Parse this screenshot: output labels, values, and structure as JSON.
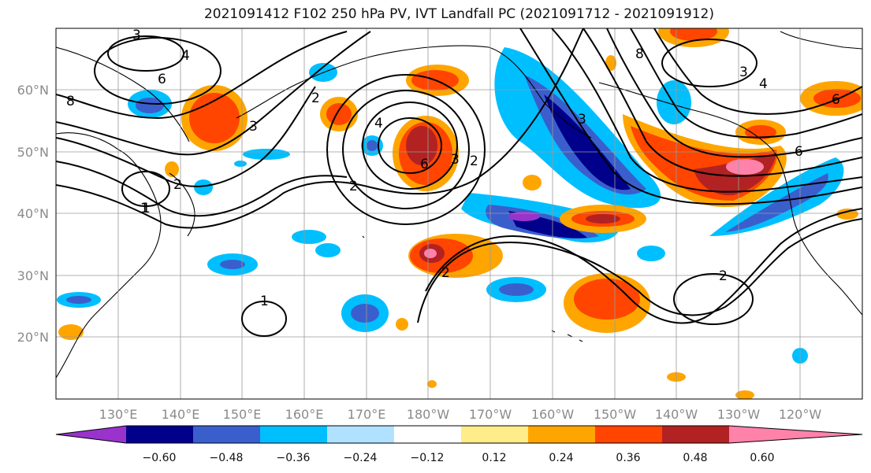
{
  "title": "2021091412 F102 250 hPa PV, IVT Landfall PC (2021091712 - 2021091912)",
  "lat_labels": [
    "20°N",
    "30°N",
    "40°N",
    "50°N",
    "60°N"
  ],
  "lon_labels": [
    "130°E",
    "140°E",
    "150°E",
    "160°E",
    "170°E",
    "180°W",
    "170°W",
    "160°W",
    "150°W",
    "140°W",
    "130°W",
    "120°W"
  ],
  "colorbar": {
    "colors": [
      "#9933cc",
      "#00008b",
      "#3a5fcd",
      "#00bfff",
      "#b0e2ff",
      "#ffffff",
      "#ffec8b",
      "#ffa500",
      "#ff4500",
      "#b22222",
      "#ff82ab"
    ],
    "tick_labels": [
      "−0.60",
      "−0.48",
      "−0.36",
      "−0.24",
      "−0.12",
      "0.12",
      "0.24",
      "0.36",
      "0.48",
      "0.60"
    ]
  },
  "contour_labels": [
    "3",
    "4",
    "6",
    "8",
    "3",
    "1",
    "2",
    "2",
    "4",
    "6",
    "3",
    "2",
    "3",
    "3",
    "4",
    "6",
    "8",
    "6",
    "2",
    "1",
    "2",
    "1",
    "2"
  ]
}
